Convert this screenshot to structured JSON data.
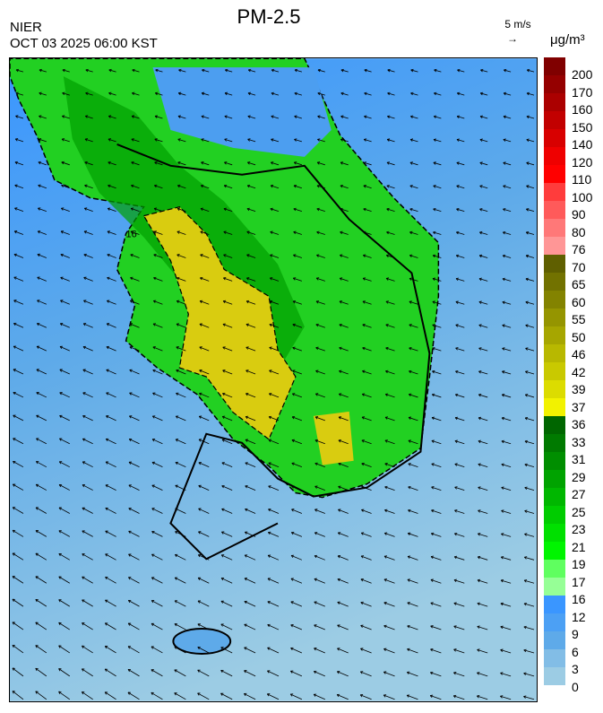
{
  "header": {
    "title": "PM-2.5",
    "agency": "NIER",
    "datetime": "OCT 03 2025 06:00 KST",
    "wind_reference": "5 m/s",
    "unit": "μg/m³"
  },
  "map": {
    "contour_label": "16",
    "ocean_color": "#8fc2e6",
    "land_color": "#22cc22",
    "high_color": "#d9cc10"
  },
  "colorbar": {
    "labels": [
      "200",
      "170",
      "160",
      "150",
      "140",
      "120",
      "110",
      "100",
      "90",
      "80",
      "76",
      "70",
      "65",
      "60",
      "55",
      "50",
      "46",
      "42",
      "39",
      "37",
      "36",
      "33",
      "31",
      "29",
      "27",
      "25",
      "23",
      "21",
      "19",
      "17",
      "16",
      "12",
      "9",
      "6",
      "3",
      "0"
    ],
    "colors": [
      "#6a0000",
      "#800000",
      "#950000",
      "#ab0000",
      "#c20000",
      "#d80000",
      "#ef0000",
      "#ff0000",
      "#ff3c3c",
      "#ff5a5a",
      "#ff7878",
      "#ff9696",
      "#5f5f00",
      "#727200",
      "#838300",
      "#959500",
      "#a6a600",
      "#b8b800",
      "#c9c900",
      "#dcdc00",
      "#f2f200",
      "#006600",
      "#007a00",
      "#008e00",
      "#00a300",
      "#00b700",
      "#00cc00",
      "#00e000",
      "#00f500",
      "#5fff5f",
      "#96ff96",
      "#3a96ff",
      "#4ca0f4",
      "#5eaae9",
      "#82bde6",
      "#9ccce4"
    ]
  }
}
